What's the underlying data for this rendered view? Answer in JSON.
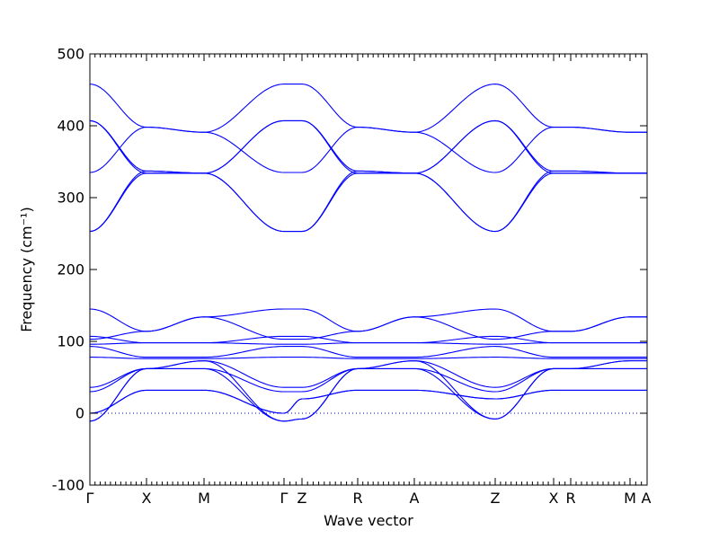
{
  "chart_data": {
    "type": "line",
    "xlabel": "Wave vector",
    "ylabel": "Frequency (cm⁻¹)",
    "ylim": [
      -100,
      500
    ],
    "yticks": [
      -100,
      0,
      100,
      200,
      300,
      400,
      500
    ],
    "line_color": "#0000ff",
    "grid": false,
    "legend": "none",
    "high_point_labels": [
      "Γ",
      "X",
      "M",
      "Γ",
      "Z",
      "R",
      "A",
      "Z",
      "X",
      "R",
      "M",
      "A"
    ],
    "segments": [
      {
        "from": "Γ",
        "to": "X"
      },
      {
        "from": "X",
        "to": "M"
      },
      {
        "from": "M",
        "to": "Γ"
      },
      {
        "from": "Γ",
        "to": "Z"
      },
      {
        "from": "Z",
        "to": "R"
      },
      {
        "from": "R",
        "to": "A"
      },
      {
        "from": "A",
        "to": "Z"
      },
      {
        "from": "Z",
        "to": "X"
      },
      {
        "from": "X",
        "to": "R"
      },
      {
        "from": "R",
        "to": "M"
      },
      {
        "from": "M",
        "to": "A"
      }
    ],
    "series": [
      {
        "values": [
          458,
          398,
          391,
          458,
          458,
          398,
          391,
          458,
          398,
          398,
          391,
          391
        ]
      },
      {
        "values": [
          407,
          337,
          334,
          407,
          407,
          337,
          334,
          407,
          337,
          337,
          334,
          334
        ]
      },
      {
        "values": [
          407,
          334,
          334,
          407,
          407,
          334,
          334,
          407,
          334,
          334,
          334,
          334
        ]
      },
      {
        "values": [
          335,
          398,
          391,
          335,
          335,
          398,
          391,
          335,
          398,
          398,
          391,
          391
        ]
      },
      {
        "values": [
          253,
          337,
          334,
          253,
          253,
          337,
          334,
          253,
          337,
          337,
          334,
          334
        ]
      },
      {
        "values": [
          253,
          334,
          334,
          253,
          253,
          334,
          334,
          253,
          334,
          334,
          334,
          334
        ]
      },
      {
        "values": [
          145,
          114,
          134,
          145,
          145,
          114,
          134,
          145,
          114,
          114,
          134,
          134
        ]
      },
      {
        "values": [
          107,
          98,
          98,
          107,
          107,
          98,
          98,
          107,
          98,
          98,
          98,
          98
        ]
      },
      {
        "values": [
          103,
          114,
          134,
          103,
          103,
          114,
          134,
          103,
          114,
          114,
          134,
          134
        ]
      },
      {
        "values": [
          96,
          98,
          98,
          96,
          96,
          98,
          98,
          96,
          98,
          98,
          98,
          98
        ]
      },
      {
        "values": [
          93,
          78,
          78,
          93,
          93,
          78,
          78,
          93,
          78,
          78,
          78,
          78
        ]
      },
      {
        "values": [
          78,
          76,
          76,
          78,
          78,
          76,
          76,
          78,
          76,
          76,
          76,
          76
        ]
      },
      {
        "values": [
          36,
          62,
          73,
          36,
          36,
          62,
          73,
          36,
          62,
          62,
          73,
          73
        ]
      },
      {
        "values": [
          30,
          62,
          62,
          30,
          30,
          62,
          62,
          30,
          62,
          62,
          62,
          62
        ]
      },
      {
        "values": [
          0,
          32,
          32,
          0,
          20,
          32,
          32,
          20,
          32,
          32,
          32,
          32
        ]
      },
      {
        "values": [
          0,
          32,
          32,
          0,
          20,
          32,
          32,
          20,
          32,
          32,
          32,
          32
        ]
      },
      {
        "values": [
          -11,
          62,
          73,
          -11,
          -8,
          62,
          73,
          -8,
          62,
          62,
          73,
          73
        ]
      },
      {
        "values": [
          -11,
          62,
          62,
          -11,
          -8,
          62,
          62,
          -8,
          62,
          62,
          62,
          62
        ]
      }
    ]
  }
}
